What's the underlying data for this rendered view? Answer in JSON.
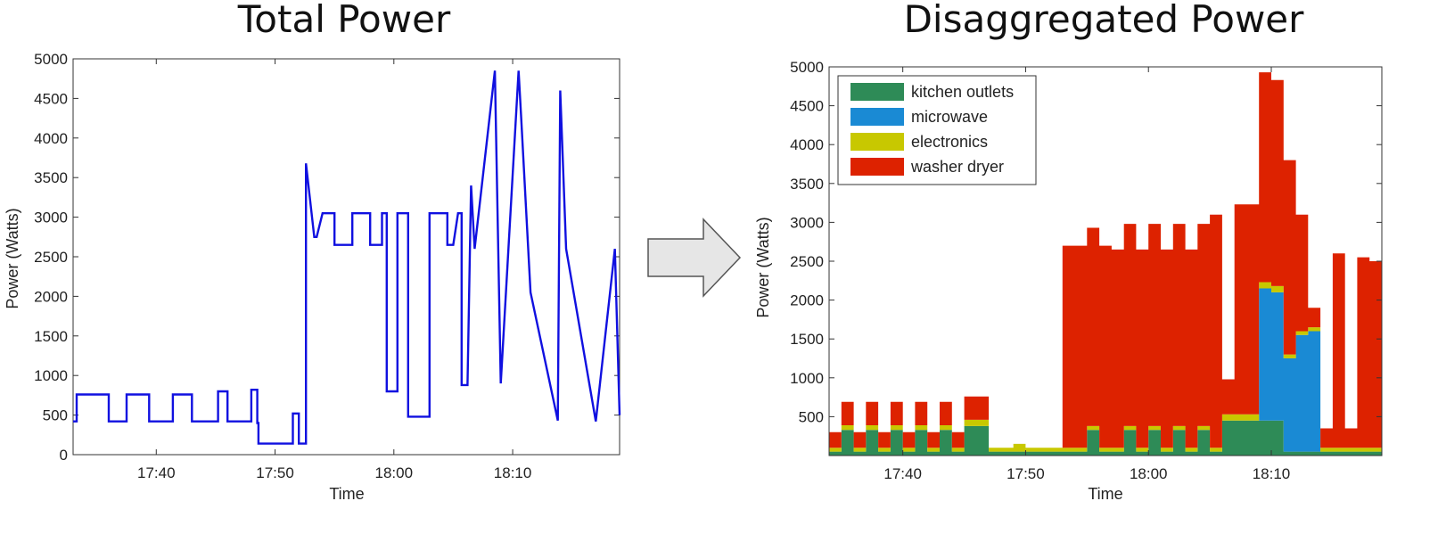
{
  "arrow": {
    "icon": "right-arrow-icon",
    "fill": "#e6e6e6",
    "stroke": "#555555"
  },
  "chart_data": [
    {
      "type": "line",
      "title": "Total Power",
      "xlabel": "Time",
      "ylabel": "Power (Watts)",
      "ylim": [
        0,
        5000
      ],
      "xlim": [
        "17:33",
        "18:19"
      ],
      "yticks": [
        0,
        500,
        1000,
        1500,
        2000,
        2500,
        3000,
        3500,
        4000,
        4500,
        5000
      ],
      "xticks": [
        "17:40",
        "17:50",
        "18:00",
        "18:10"
      ],
      "grid": false,
      "line_color": "#1010e0",
      "series": [
        {
          "name": "",
          "x": [
            "17:33",
            "17:33.3",
            "17:33.3",
            "17:36",
            "17:36",
            "17:37.5",
            "17:37.5",
            "17:39.4",
            "17:39.4",
            "17:41.4",
            "17:41.4",
            "17:43",
            "17:43",
            "17:45.2",
            "17:45.2",
            "17:46",
            "17:46",
            "17:48",
            "17:48",
            "17:48.5",
            "17:48.5",
            "17:48.6",
            "17:48.6",
            "17:51.5",
            "17:51.5",
            "17:52",
            "17:52",
            "17:52.6",
            "17:52.6",
            "17:53.3",
            "17:53.5",
            "17:54",
            "17:55",
            "17:55",
            "17:56.5",
            "17:56.5",
            "17:58",
            "17:58",
            "17:59",
            "17:59",
            "17:59.4",
            "17:59.4",
            "18:00.3",
            "18:00.3",
            "18:01.2",
            "18:01.2",
            "18:03",
            "18:03",
            "18:04.5",
            "18:04.5",
            "18:05",
            "18:05.4",
            "18:05.7",
            "18:05.7",
            "18:06.2",
            "18:06.5",
            "18:06.5",
            "18:06.8",
            "18:06.8",
            "18:08.5",
            "18:08.5",
            "18:09",
            "18:09",
            "18:10.5",
            "18:10.5",
            "18:10.7",
            "18:10.7",
            "18:11.5",
            "18:11.5",
            "18:13.8",
            "18:13.8",
            "18:14",
            "18:14",
            "18:14.5",
            "18:14.5",
            "18:17",
            "18:17",
            "18:18.6",
            "18:18.6",
            "18:19"
          ],
          "values": [
            420,
            420,
            760,
            760,
            420,
            420,
            760,
            760,
            420,
            420,
            760,
            760,
            420,
            420,
            800,
            800,
            420,
            420,
            820,
            820,
            400,
            400,
            140,
            140,
            520,
            520,
            140,
            140,
            3680,
            2750,
            2750,
            3050,
            3050,
            2650,
            2650,
            3050,
            3050,
            2650,
            2650,
            3050,
            3050,
            800,
            800,
            3050,
            3050,
            480,
            480,
            3050,
            3050,
            2650,
            2650,
            3050,
            3050,
            880,
            880,
            3400,
            3400,
            2600,
            2600,
            4850,
            4850,
            900,
            900,
            4850,
            4850,
            4300,
            4300,
            2050,
            2050,
            430,
            430,
            4600,
            4600,
            2600,
            2600,
            420,
            420,
            2600,
            2600,
            500
          ]
        }
      ]
    },
    {
      "type": "area",
      "stacked": true,
      "title": "Disaggregated Power",
      "xlabel": "Time",
      "ylabel": "Power (Watts)",
      "ylim": [
        0,
        5000
      ],
      "xlim": [
        "17:34",
        "18:19"
      ],
      "yticks": [
        500,
        1000,
        1500,
        2000,
        2500,
        3000,
        3500,
        4000,
        4500,
        5000
      ],
      "xticks": [
        "17:40",
        "17:50",
        "18:00",
        "18:10"
      ],
      "grid": false,
      "legend_position": "top-left",
      "x": [
        "17:34",
        "17:35",
        "17:36",
        "17:37",
        "17:38",
        "17:39",
        "17:40",
        "17:41",
        "17:42",
        "17:43",
        "17:44",
        "17:45",
        "17:46",
        "17:47",
        "17:48",
        "17:49",
        "17:50",
        "17:51",
        "17:52",
        "17:53",
        "17:54",
        "17:55",
        "17:56",
        "17:57",
        "17:58",
        "17:59",
        "18:00",
        "18:01",
        "18:02",
        "18:03",
        "18:04",
        "18:05",
        "18:06",
        "18:07",
        "18:08",
        "18:09",
        "18:10",
        "18:11",
        "18:12",
        "18:13",
        "18:14",
        "18:15",
        "18:16",
        "18:17",
        "18:18",
        "18:19"
      ],
      "series": [
        {
          "name": "kitchen outlets",
          "color": "#2e8b57",
          "values": [
            50,
            330,
            50,
            330,
            50,
            330,
            50,
            330,
            50,
            330,
            50,
            380,
            380,
            50,
            50,
            50,
            50,
            50,
            50,
            50,
            50,
            330,
            50,
            50,
            330,
            50,
            330,
            50,
            330,
            50,
            330,
            50,
            450,
            450,
            450,
            450,
            450,
            50,
            50,
            50,
            50,
            50,
            50,
            50,
            50,
            50
          ]
        },
        {
          "name": "microwave",
          "color": "#1a8ad4",
          "values": [
            0,
            0,
            0,
            0,
            0,
            0,
            0,
            0,
            0,
            0,
            0,
            0,
            0,
            0,
            0,
            0,
            0,
            0,
            0,
            0,
            0,
            0,
            0,
            0,
            0,
            0,
            0,
            0,
            0,
            0,
            0,
            0,
            0,
            0,
            0,
            1700,
            1650,
            1200,
            1500,
            1550,
            0,
            0,
            0,
            0,
            0,
            0
          ]
        },
        {
          "name": "electronics",
          "color": "#c8c800",
          "values": [
            50,
            60,
            50,
            60,
            50,
            60,
            50,
            60,
            50,
            60,
            50,
            80,
            80,
            50,
            50,
            100,
            50,
            50,
            50,
            50,
            50,
            50,
            50,
            50,
            50,
            50,
            50,
            50,
            50,
            50,
            50,
            50,
            80,
            80,
            80,
            80,
            80,
            50,
            50,
            50,
            50,
            50,
            50,
            50,
            50,
            50
          ]
        },
        {
          "name": "washer dryer",
          "color": "#dd2200",
          "values": [
            200,
            300,
            200,
            300,
            200,
            300,
            200,
            300,
            200,
            300,
            200,
            300,
            300,
            0,
            0,
            0,
            0,
            0,
            0,
            2600,
            2600,
            2550,
            2600,
            2550,
            2600,
            2550,
            2600,
            2550,
            2600,
            2550,
            2600,
            3000,
            450,
            2700,
            2700,
            2700,
            2650,
            2500,
            1500,
            250,
            250,
            2500,
            250,
            2450,
            2400,
            2400
          ]
        }
      ]
    }
  ]
}
